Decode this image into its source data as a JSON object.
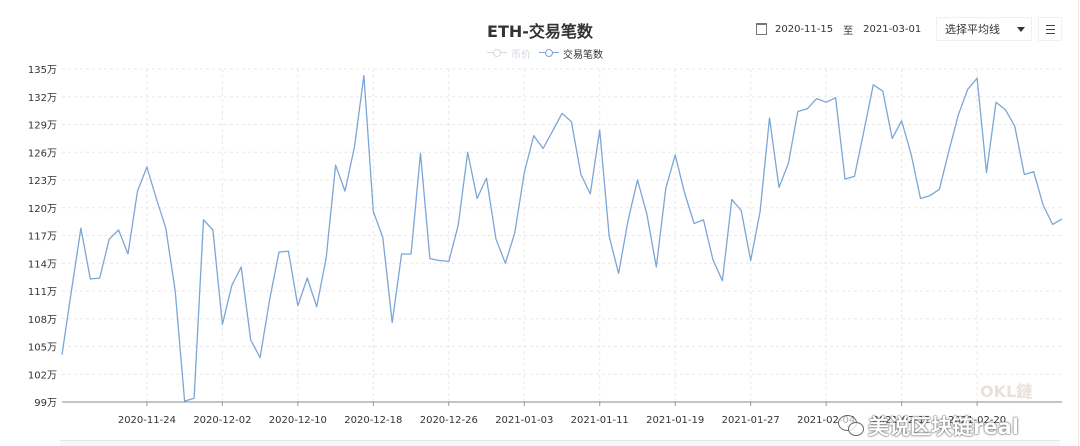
{
  "chart_data": {
    "type": "line",
    "title": "ETH-交易笔数",
    "date_range": {
      "start": "2020-11-15",
      "separator": "至",
      "end": "2021-03-01"
    },
    "ma_select_label": "选择平均线",
    "legend": [
      {
        "name": "币价",
        "active": false
      },
      {
        "name": "交易笔数",
        "active": true
      }
    ],
    "legend_placement": "top-center",
    "y_ticks": [
      "99万",
      "102万",
      "105万",
      "108万",
      "111万",
      "114万",
      "117万",
      "120万",
      "123万",
      "126万",
      "129万",
      "132万",
      "135万"
    ],
    "ylim": [
      99,
      135
    ],
    "y_unit": "万",
    "x_ticks": [
      "2020-11-24",
      "2020-12-02",
      "2020-12-10",
      "2020-12-18",
      "2020-12-26",
      "2021-01-03",
      "2021-01-11",
      "2021-01-19",
      "2021-01-27",
      "2021-02-04",
      "2021-02-12",
      "2021-02-20"
    ],
    "xlim": [
      "2020-11-15",
      "2021-03-01"
    ],
    "grid": true,
    "series": [
      {
        "name": "交易笔数",
        "color": "#7ba6d6",
        "x": [
          "2020-11-15",
          "2020-11-16",
          "2020-11-17",
          "2020-11-18",
          "2020-11-19",
          "2020-11-20",
          "2020-11-21",
          "2020-11-22",
          "2020-11-23",
          "2020-11-24",
          "2020-11-25",
          "2020-11-26",
          "2020-11-27",
          "2020-11-28",
          "2020-11-29",
          "2020-11-30",
          "2020-12-01",
          "2020-12-02",
          "2020-12-03",
          "2020-12-04",
          "2020-12-05",
          "2020-12-06",
          "2020-12-07",
          "2020-12-08",
          "2020-12-09",
          "2020-12-10",
          "2020-12-11",
          "2020-12-12",
          "2020-12-13",
          "2020-12-14",
          "2020-12-15",
          "2020-12-16",
          "2020-12-17",
          "2020-12-18",
          "2020-12-19",
          "2020-12-20",
          "2020-12-21",
          "2020-12-22",
          "2020-12-23",
          "2020-12-24",
          "2020-12-25",
          "2020-12-26",
          "2020-12-27",
          "2020-12-28",
          "2020-12-29",
          "2020-12-30",
          "2020-12-31",
          "2021-01-01",
          "2021-01-02",
          "2021-01-03",
          "2021-01-04",
          "2021-01-05",
          "2021-01-06",
          "2021-01-07",
          "2021-01-08",
          "2021-01-09",
          "2021-01-10",
          "2021-01-11",
          "2021-01-12",
          "2021-01-13",
          "2021-01-14",
          "2021-01-15",
          "2021-01-16",
          "2021-01-17",
          "2021-01-18",
          "2021-01-19",
          "2021-01-20",
          "2021-01-21",
          "2021-01-22",
          "2021-01-23",
          "2021-01-24",
          "2021-01-25",
          "2021-01-26",
          "2021-01-27",
          "2021-01-28",
          "2021-01-29",
          "2021-01-30",
          "2021-01-31",
          "2021-02-01",
          "2021-02-02",
          "2021-02-03",
          "2021-02-04",
          "2021-02-05",
          "2021-02-06",
          "2021-02-07",
          "2021-02-08",
          "2021-02-09",
          "2021-02-10",
          "2021-02-11",
          "2021-02-12",
          "2021-02-13",
          "2021-02-14",
          "2021-02-15",
          "2021-02-16",
          "2021-02-17",
          "2021-02-18",
          "2021-02-19",
          "2021-02-20",
          "2021-02-21",
          "2021-02-22",
          "2021-02-23",
          "2021-02-24",
          "2021-02-25",
          "2021-02-26",
          "2021-02-27",
          "2021-02-28",
          "2021-03-01"
        ],
        "values": [
          104.1,
          111.0,
          117.8,
          112.3,
          112.4,
          116.6,
          117.6,
          115.0,
          121.8,
          124.4,
          121.0,
          117.8,
          111.0,
          99.1,
          99.4,
          118.7,
          117.6,
          107.4,
          111.6,
          113.6,
          105.7,
          103.8,
          110.0,
          115.2,
          115.3,
          109.4,
          112.4,
          109.3,
          114.6,
          124.6,
          121.8,
          126.6,
          134.3,
          119.6,
          116.8,
          107.6,
          115.0,
          115.0,
          125.9,
          114.5,
          114.3,
          114.2,
          118.1,
          126.0,
          121.0,
          123.2,
          116.6,
          114.0,
          117.3,
          123.8,
          127.8,
          126.4,
          128.3,
          130.2,
          129.3,
          123.6,
          121.5,
          128.4,
          116.9,
          112.9,
          118.6,
          123.0,
          119.3,
          113.6,
          122.1,
          125.7,
          121.6,
          118.3,
          118.7,
          114.4,
          112.1,
          120.9,
          119.7,
          114.3,
          119.6,
          129.7,
          122.2,
          124.8,
          130.4,
          130.7,
          131.8,
          131.4,
          131.9,
          123.1,
          123.4,
          128.3,
          133.3,
          132.6,
          127.5,
          129.4,
          125.8,
          121.0,
          121.3,
          122.0,
          126.1,
          130.0,
          132.8,
          134.0,
          123.8,
          131.4,
          130.6,
          128.8,
          123.6,
          123.9,
          120.3,
          118.2,
          118.8
        ]
      },
      {
        "name": "币价",
        "color": "#d3dbe5",
        "visible": false
      }
    ]
  },
  "watermarks": {
    "logo_text": "OKL",
    "logo_suffix": "鏈",
    "account_text": "美说区块链real"
  }
}
